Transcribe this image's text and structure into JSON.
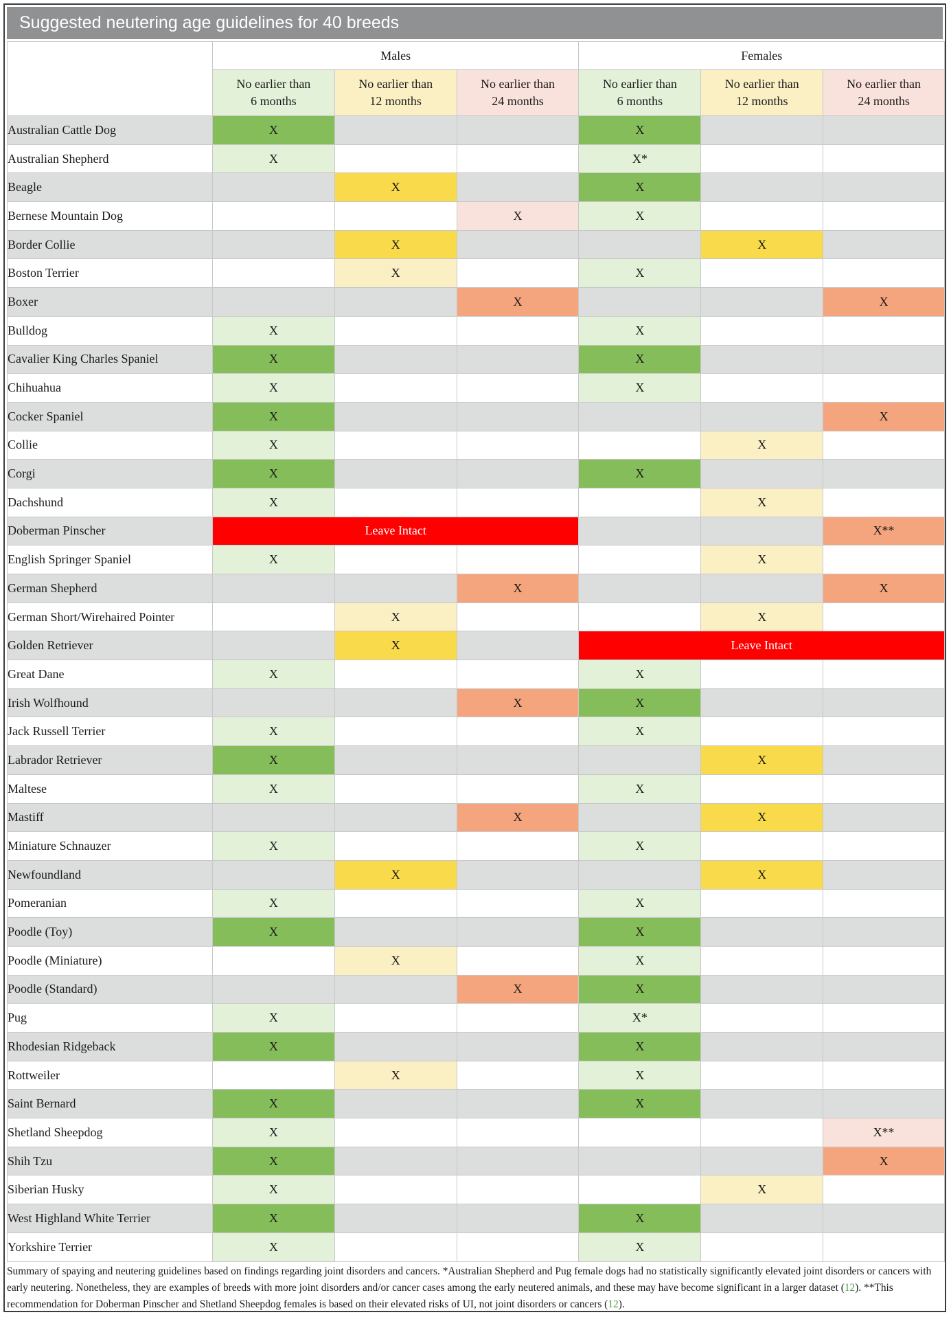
{
  "title": "Suggested neutering age guidelines for 40 breeds",
  "groups": [
    "Males",
    "Females"
  ],
  "subheaders": [
    "No earlier than\n6 months",
    "No earlier than\n12 months",
    "No earlier than\n24 months",
    "No earlier than\n6 months",
    "No earlier than\n12 months",
    "No earlier than\n24 months"
  ],
  "legend_colors": {
    "6_months_light": "#e3f1d9",
    "6_months_dark": "#86bd5b",
    "12_months_light": "#fbefc4",
    "12_months_dark": "#f8da4a",
    "24_months_light": "#fae2dc",
    "24_months_dark": "#f5a57d",
    "leave_intact": "#ff0000",
    "row_shade": "#dcdddd",
    "title_bar": "#8f9192"
  },
  "rows": [
    {
      "breed": "Australian Cattle Dog",
      "shaded": true,
      "cells": [
        {
          "t": "X",
          "c": "dg"
        },
        {},
        {},
        {
          "t": "X",
          "c": "dg"
        },
        {},
        {}
      ]
    },
    {
      "breed": "Australian Shepherd",
      "shaded": false,
      "cells": [
        {
          "t": "X",
          "c": "lg"
        },
        {},
        {},
        {
          "t": "X*",
          "c": "lg"
        },
        {},
        {}
      ]
    },
    {
      "breed": "Beagle",
      "shaded": true,
      "cells": [
        {},
        {
          "t": "X",
          "c": "dy"
        },
        {},
        {
          "t": "X",
          "c": "dg"
        },
        {},
        {}
      ]
    },
    {
      "breed": "Bernese Mountain Dog",
      "shaded": false,
      "cells": [
        {},
        {},
        {
          "t": "X",
          "c": "lp"
        },
        {
          "t": "X",
          "c": "lg"
        },
        {},
        {}
      ]
    },
    {
      "breed": "Border Collie",
      "shaded": true,
      "cells": [
        {},
        {
          "t": "X",
          "c": "dy"
        },
        {},
        {},
        {
          "t": "X",
          "c": "dy"
        },
        {}
      ]
    },
    {
      "breed": "Boston Terrier",
      "shaded": false,
      "cells": [
        {},
        {
          "t": "X",
          "c": "ly"
        },
        {},
        {
          "t": "X",
          "c": "lg"
        },
        {},
        {}
      ]
    },
    {
      "breed": "Boxer",
      "shaded": true,
      "cells": [
        {},
        {},
        {
          "t": "X",
          "c": "or"
        },
        {},
        {},
        {
          "t": "X",
          "c": "or"
        }
      ]
    },
    {
      "breed": "Bulldog",
      "shaded": false,
      "cells": [
        {
          "t": "X",
          "c": "lg"
        },
        {},
        {},
        {
          "t": "X",
          "c": "lg"
        },
        {},
        {}
      ]
    },
    {
      "breed": "Cavalier King Charles Spaniel",
      "shaded": true,
      "cells": [
        {
          "t": "X",
          "c": "dg"
        },
        {},
        {},
        {
          "t": "X",
          "c": "dg"
        },
        {},
        {}
      ]
    },
    {
      "breed": "Chihuahua",
      "shaded": false,
      "cells": [
        {
          "t": "X",
          "c": "lg"
        },
        {},
        {},
        {
          "t": "X",
          "c": "lg"
        },
        {},
        {}
      ]
    },
    {
      "breed": "Cocker Spaniel",
      "shaded": true,
      "cells": [
        {
          "t": "X",
          "c": "dg"
        },
        {},
        {},
        {},
        {},
        {
          "t": "X",
          "c": "or"
        }
      ]
    },
    {
      "breed": "Collie",
      "shaded": false,
      "cells": [
        {
          "t": "X",
          "c": "lg"
        },
        {},
        {},
        {},
        {
          "t": "X",
          "c": "ly"
        },
        {}
      ]
    },
    {
      "breed": "Corgi",
      "shaded": true,
      "cells": [
        {
          "t": "X",
          "c": "dg"
        },
        {},
        {},
        {
          "t": "X",
          "c": "dg"
        },
        {},
        {}
      ]
    },
    {
      "breed": "Dachshund",
      "shaded": false,
      "cells": [
        {
          "t": "X",
          "c": "lg"
        },
        {},
        {},
        {},
        {
          "t": "X",
          "c": "ly"
        },
        {}
      ]
    },
    {
      "breed": "Doberman Pinscher",
      "shaded": true,
      "males_span": "Leave Intact",
      "cells": [
        {},
        {},
        {},
        {},
        {},
        {
          "t": "X**",
          "c": "or"
        }
      ]
    },
    {
      "breed": "English Springer Spaniel",
      "shaded": false,
      "cells": [
        {
          "t": "X",
          "c": "lg"
        },
        {},
        {},
        {},
        {
          "t": "X",
          "c": "ly"
        },
        {}
      ]
    },
    {
      "breed": "German Shepherd",
      "shaded": true,
      "cells": [
        {},
        {},
        {
          "t": "X",
          "c": "or"
        },
        {},
        {},
        {
          "t": "X",
          "c": "or"
        }
      ]
    },
    {
      "breed": "German Short/Wirehaired Pointer",
      "shaded": false,
      "cells": [
        {},
        {
          "t": "X",
          "c": "ly"
        },
        {},
        {},
        {
          "t": "X",
          "c": "ly"
        },
        {}
      ]
    },
    {
      "breed": "Golden Retriever",
      "shaded": true,
      "females_span": "Leave Intact",
      "cells": [
        {},
        {
          "t": "X",
          "c": "dy"
        },
        {},
        {},
        {},
        {}
      ]
    },
    {
      "breed": "Great Dane",
      "shaded": false,
      "cells": [
        {
          "t": "X",
          "c": "lg"
        },
        {},
        {},
        {
          "t": "X",
          "c": "lg"
        },
        {},
        {}
      ]
    },
    {
      "breed": "Irish Wolfhound",
      "shaded": true,
      "cells": [
        {},
        {},
        {
          "t": "X",
          "c": "or"
        },
        {
          "t": "X",
          "c": "dg"
        },
        {},
        {}
      ]
    },
    {
      "breed": "Jack Russell Terrier",
      "shaded": false,
      "cells": [
        {
          "t": "X",
          "c": "lg"
        },
        {},
        {},
        {
          "t": "X",
          "c": "lg"
        },
        {},
        {}
      ]
    },
    {
      "breed": "Labrador Retriever",
      "shaded": true,
      "cells": [
        {
          "t": "X",
          "c": "dg"
        },
        {},
        {},
        {},
        {
          "t": "X",
          "c": "dy"
        },
        {}
      ]
    },
    {
      "breed": "Maltese",
      "shaded": false,
      "cells": [
        {
          "t": "X",
          "c": "lg"
        },
        {},
        {},
        {
          "t": "X",
          "c": "lg"
        },
        {},
        {}
      ]
    },
    {
      "breed": "Mastiff",
      "shaded": true,
      "cells": [
        {},
        {},
        {
          "t": "X",
          "c": "or"
        },
        {},
        {
          "t": "X",
          "c": "dy"
        },
        {}
      ]
    },
    {
      "breed": "Miniature Schnauzer",
      "shaded": false,
      "cells": [
        {
          "t": "X",
          "c": "lg"
        },
        {},
        {},
        {
          "t": "X",
          "c": "lg"
        },
        {},
        {}
      ]
    },
    {
      "breed": "Newfoundland",
      "shaded": true,
      "cells": [
        {},
        {
          "t": "X",
          "c": "dy"
        },
        {},
        {},
        {
          "t": "X",
          "c": "dy"
        },
        {}
      ]
    },
    {
      "breed": "Pomeranian",
      "shaded": false,
      "cells": [
        {
          "t": "X",
          "c": "lg"
        },
        {},
        {},
        {
          "t": "X",
          "c": "lg"
        },
        {},
        {}
      ]
    },
    {
      "breed": "Poodle (Toy)",
      "shaded": true,
      "cells": [
        {
          "t": "X",
          "c": "dg"
        },
        {},
        {},
        {
          "t": "X",
          "c": "dg"
        },
        {},
        {}
      ]
    },
    {
      "breed": "Poodle (Miniature)",
      "shaded": false,
      "cells": [
        {},
        {
          "t": "X",
          "c": "ly"
        },
        {},
        {
          "t": "X",
          "c": "lg"
        },
        {},
        {}
      ]
    },
    {
      "breed": "Poodle (Standard)",
      "shaded": true,
      "cells": [
        {},
        {},
        {
          "t": "X",
          "c": "or"
        },
        {
          "t": "X",
          "c": "dg"
        },
        {},
        {}
      ]
    },
    {
      "breed": "Pug",
      "shaded": false,
      "cells": [
        {
          "t": "X",
          "c": "lg"
        },
        {},
        {},
        {
          "t": "X*",
          "c": "lg"
        },
        {},
        {}
      ]
    },
    {
      "breed": "Rhodesian Ridgeback",
      "shaded": true,
      "cells": [
        {
          "t": "X",
          "c": "dg"
        },
        {},
        {},
        {
          "t": "X",
          "c": "dg"
        },
        {},
        {}
      ]
    },
    {
      "breed": "Rottweiler",
      "shaded": false,
      "cells": [
        {},
        {
          "t": "X",
          "c": "ly"
        },
        {},
        {
          "t": "X",
          "c": "lg"
        },
        {},
        {}
      ]
    },
    {
      "breed": "Saint Bernard",
      "shaded": true,
      "cells": [
        {
          "t": "X",
          "c": "dg"
        },
        {},
        {},
        {
          "t": "X",
          "c": "dg"
        },
        {},
        {}
      ]
    },
    {
      "breed": "Shetland Sheepdog",
      "shaded": false,
      "cells": [
        {
          "t": "X",
          "c": "lg"
        },
        {},
        {},
        {},
        {},
        {
          "t": "X**",
          "c": "lp"
        }
      ]
    },
    {
      "breed": "Shih Tzu",
      "shaded": true,
      "cells": [
        {
          "t": "X",
          "c": "dg"
        },
        {},
        {},
        {},
        {},
        {
          "t": "X",
          "c": "or"
        }
      ]
    },
    {
      "breed": "Siberian Husky",
      "shaded": false,
      "cells": [
        {
          "t": "X",
          "c": "lg"
        },
        {},
        {},
        {},
        {
          "t": "X",
          "c": "ly"
        },
        {}
      ]
    },
    {
      "breed": "West Highland White Terrier",
      "shaded": true,
      "cells": [
        {
          "t": "X",
          "c": "dg"
        },
        {},
        {},
        {
          "t": "X",
          "c": "dg"
        },
        {},
        {}
      ]
    },
    {
      "breed": "Yorkshire Terrier",
      "shaded": false,
      "cells": [
        {
          "t": "X",
          "c": "lg"
        },
        {},
        {},
        {
          "t": "X",
          "c": "lg"
        },
        {},
        {}
      ]
    }
  ],
  "footnote": {
    "part1": "Summary of spaying and neutering guidelines based on findings regarding joint disorders and cancers. *Australian Shepherd and Pug female dogs had no statistically significantly elevated joint disorders or cancers with early neutering. Nonetheless, they are examples of breeds with more joint disorders and/or cancer cases among the early neutered animals, and these may have become significant in a larger dataset (",
    "ref1": "12",
    "part2": "). **This recommendation for Doberman Pinscher and Shetland Sheepdog females is based on their elevated risks of UI, not joint disorders or cancers (",
    "ref2": "12",
    "part3": ")."
  }
}
